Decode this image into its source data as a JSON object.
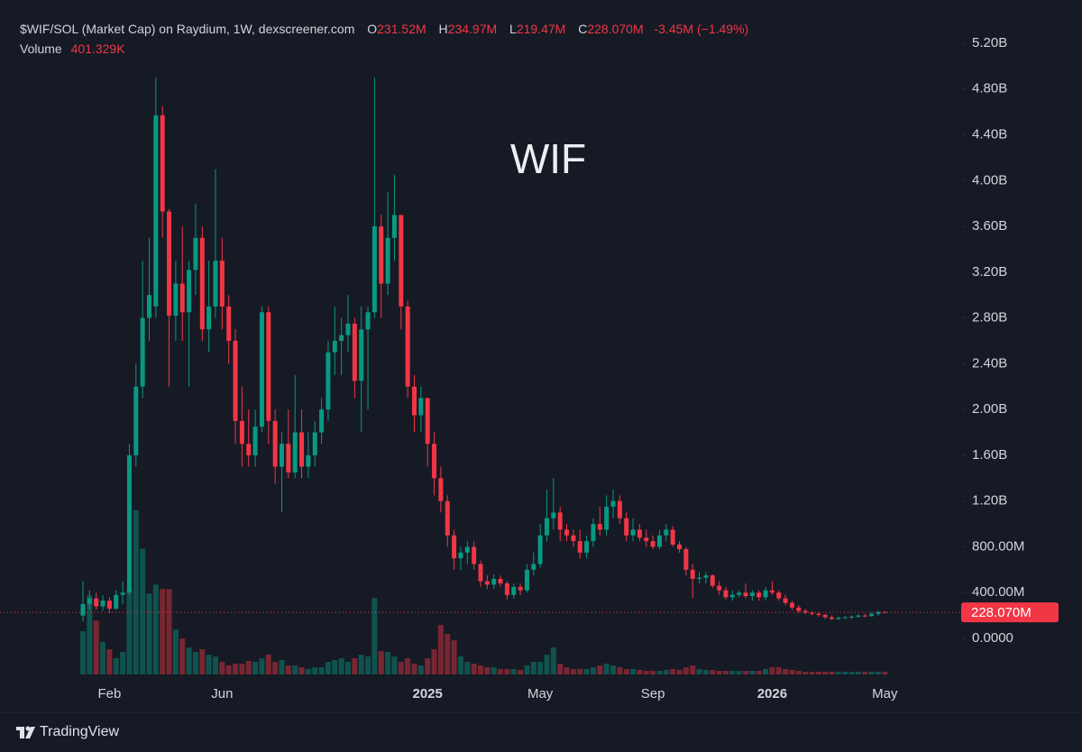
{
  "chart_data": {
    "type": "candlestick",
    "title": "$WIF/SOL (Market Cap) on Raydium, 1W, dexscreener.com",
    "ohlc_legend": [
      {
        "key": "O",
        "value": "231.52M"
      },
      {
        "key": "H",
        "value": "234.97M"
      },
      {
        "key": "L",
        "value": "219.47M"
      },
      {
        "key": "C",
        "value": "228.070M"
      }
    ],
    "change": "-3.45M (−1.49%)",
    "volume_label": "Volume",
    "volume_value_label": "401.329K",
    "watermark": "WIF",
    "last_price": {
      "value": 228070000,
      "label": "228.070M"
    },
    "up_color": "#089981",
    "down_color": "#f23645",
    "grid": false,
    "ylim": [
      -315000000,
      5578000000
    ],
    "yticks": [
      {
        "value": 0,
        "label": "0.0000"
      },
      {
        "value": 400000000,
        "label": "400.00M"
      },
      {
        "value": 800000000,
        "label": "800.00M"
      },
      {
        "value": 1200000000,
        "label": "1.20B"
      },
      {
        "value": 1600000000,
        "label": "1.60B"
      },
      {
        "value": 2000000000,
        "label": "2.00B"
      },
      {
        "value": 2400000000,
        "label": "2.40B"
      },
      {
        "value": 2800000000,
        "label": "2.80B"
      },
      {
        "value": 3200000000,
        "label": "3.20B"
      },
      {
        "value": 3600000000,
        "label": "3.60B"
      },
      {
        "value": 4000000000,
        "label": "4.00B"
      },
      {
        "value": 4400000000,
        "label": "4.40B"
      },
      {
        "value": 4800000000,
        "label": "4.80B"
      },
      {
        "value": 5200000000,
        "label": "5.20B"
      }
    ],
    "y2lim": [
      0,
      30000000
    ],
    "xticks": [
      {
        "value": 4,
        "label": "Feb"
      },
      {
        "value": 21,
        "label": "Jun"
      },
      {
        "value": 52,
        "label": "2025"
      },
      {
        "value": 69,
        "label": "May"
      },
      {
        "value": 86,
        "label": "Sep"
      },
      {
        "value": 104,
        "label": "2026"
      },
      {
        "value": 121,
        "label": "May"
      }
    ],
    "open": [
      200000000.0,
      300000000.0,
      350000000.0,
      280000000.0,
      330000000.0,
      260000000.0,
      380000000.0,
      400000000.0,
      1600000000.0,
      2200000000.0,
      2800000000.0,
      2900000000.0,
      4570000000.0,
      3730000000.0,
      2820000000.0,
      3100000000.0,
      2850000000.0,
      3220000000.0,
      3500000000.0,
      2700000000.0,
      2900000000.0,
      3300000000.0,
      2900000000.0,
      2600000000.0,
      1900000000.0,
      1700000000.0,
      1600000000.0,
      1850000000.0,
      2850000000.0,
      1900000000.0,
      1500000000.0,
      1700000000.0,
      1450000000.0,
      1800000000.0,
      1500000000.0,
      1600000000.0,
      1800000000.0,
      2000000000.0,
      2500000000.0,
      2600000000.0,
      2650000000.0,
      2750000000.0,
      2250000000.0,
      2700000000.0,
      2850000000.0,
      3600000000.0,
      3100000000.0,
      3500000000.0,
      3700000000.0,
      2900000000.0,
      2200000000.0,
      1950000000.0,
      2100000000.0,
      1700000000.0,
      1400000000.0,
      1200000000.0,
      900000000.0,
      700000000.0,
      750000000.0,
      800000000.0,
      650000000.0,
      500000000.0,
      470000000.0,
      520000000.0,
      480000000.0,
      380000000.0,
      450000000.0,
      420000000.0,
      600000000.0,
      650000000.0,
      900000000.0,
      1050000000.0,
      1100000000.0,
      950000000.0,
      900000000.0,
      850000000.0,
      750000000.0,
      850000000.0,
      1000000000.0,
      950000000.0,
      1150000000.0,
      1200000000.0,
      1050000000.0,
      900000000.0,
      950000000.0,
      880000000.0,
      850000000.0,
      800000000.0,
      900000000.0,
      950000000.0,
      820000000.0,
      780000000.0,
      600000000.0,
      520000000.0,
      530000000.0,
      550000000.0,
      460000000.0,
      420000000.0,
      360000000.0,
      380000000.0,
      400000000.0,
      370000000.0,
      400000000.0,
      360000000.0,
      420000000.0,
      400000000.0,
      350000000.0,
      310000000.0,
      270000000.0,
      240000000.0,
      225000000.0,
      215000000.0,
      205000000.0,
      185000000.0,
      170000000.0,
      180000000.0,
      185000000.0,
      190000000.0,
      200000000.0,
      195000000.0,
      215000000.0,
      231520000.0
    ],
    "high": [
      500000000.0,
      420000000.0,
      400000000.0,
      380000000.0,
      360000000.0,
      420000000.0,
      500000000.0,
      1700000000.0,
      2400000000.0,
      3300000000.0,
      3500000000.0,
      4900000000.0,
      4650000000.0,
      3750000000.0,
      3300000000.0,
      3600000000.0,
      3300000000.0,
      3800000000.0,
      3600000000.0,
      3300000000.0,
      4100000000.0,
      3500000000.0,
      3000000000.0,
      2700000000.0,
      2200000000.0,
      2000000000.0,
      2000000000.0,
      2900000000.0,
      2900000000.0,
      2000000000.0,
      1800000000.0,
      2000000000.0,
      2300000000.0,
      2000000000.0,
      1800000000.0,
      1900000000.0,
      2100000000.0,
      2600000000.0,
      2900000000.0,
      2800000000.0,
      3000000000.0,
      2800000000.0,
      2900000000.0,
      2900000000.0,
      4900000000.0,
      3700000000.0,
      3900000000.0,
      4050000000.0,
      3700000000.0,
      2950000000.0,
      2300000000.0,
      2200000000.0,
      2100000000.0,
      1800000000.0,
      1500000000.0,
      1250000000.0,
      950000000.0,
      800000000.0,
      850000000.0,
      850000000.0,
      680000000.0,
      550000000.0,
      560000000.0,
      550000000.0,
      500000000.0,
      480000000.0,
      480000000.0,
      650000000.0,
      750000000.0,
      1000000000.0,
      1300000000.0,
      1400000000.0,
      1150000000.0,
      1000000000.0,
      950000000.0,
      950000000.0,
      900000000.0,
      1050000000.0,
      1150000000.0,
      1250000000.0,
      1300000000.0,
      1250000000.0,
      1100000000.0,
      1050000000.0,
      1000000000.0,
      950000000.0,
      900000000.0,
      950000000.0,
      1000000000.0,
      980000000.0,
      850000000.0,
      800000000.0,
      650000000.0,
      580000000.0,
      580000000.0,
      560000000.0,
      500000000.0,
      450000000.0,
      420000000.0,
      420000000.0,
      480000000.0,
      420000000.0,
      420000000.0,
      450000000.0,
      500000000.0,
      420000000.0,
      380000000.0,
      330000000.0,
      290000000.0,
      260000000.0,
      240000000.0,
      230000000.0,
      215000000.0,
      200000000.0,
      190000000.0,
      195000000.0,
      200000000.0,
      210000000.0,
      215000000.0,
      230000000.0,
      240000000.0,
      234970000.0
    ],
    "low": [
      150000000.0,
      250000000.0,
      250000000.0,
      240000000.0,
      220000000.0,
      250000000.0,
      300000000.0,
      380000000.0,
      1500000000.0,
      2100000000.0,
      2600000000.0,
      2800000000.0,
      3500000000.0,
      2200000000.0,
      2600000000.0,
      2600000000.0,
      2200000000.0,
      3000000000.0,
      2600000000.0,
      2500000000.0,
      2800000000.0,
      2700000000.0,
      2400000000.0,
      1700000000.0,
      1500000000.0,
      1500000000.0,
      1500000000.0,
      1800000000.0,
      1700000000.0,
      1350000000.0,
      1100000000.0,
      1400000000.0,
      1400000000.0,
      1400000000.0,
      1400000000.0,
      1500000000.0,
      1700000000.0,
      1900000000.0,
      2300000000.0,
      2300000000.0,
      2500000000.0,
      2100000000.0,
      1800000000.0,
      2000000000.0,
      2800000000.0,
      2800000000.0,
      3000000000.0,
      3300000000.0,
      2700000000.0,
      2100000000.0,
      1800000000.0,
      1800000000.0,
      1500000000.0,
      1250000000.0,
      1100000000.0,
      800000000.0,
      600000000.0,
      600000000.0,
      650000000.0,
      600000000.0,
      450000000.0,
      430000000.0,
      430000000.0,
      450000000.0,
      340000000.0,
      350000000.0,
      380000000.0,
      400000000.0,
      550000000.0,
      620000000.0,
      850000000.0,
      950000000.0,
      850000000.0,
      850000000.0,
      800000000.0,
      700000000.0,
      700000000.0,
      800000000.0,
      900000000.0,
      900000000.0,
      1050000000.0,
      1000000000.0,
      850000000.0,
      850000000.0,
      850000000.0,
      800000000.0,
      780000000.0,
      780000000.0,
      850000000.0,
      800000000.0,
      750000000.0,
      550000000.0,
      350000000.0,
      480000000.0,
      480000000.0,
      440000000.0,
      380000000.0,
      340000000.0,
      330000000.0,
      360000000.0,
      350000000.0,
      330000000.0,
      330000000.0,
      330000000.0,
      380000000.0,
      330000000.0,
      290000000.0,
      250000000.0,
      220000000.0,
      210000000.0,
      200000000.0,
      190000000.0,
      170000000.0,
      160000000.0,
      160000000.0,
      170000000.0,
      170000000.0,
      180000000.0,
      185000000.0,
      190000000.0,
      200000000.0,
      219470000.0
    ],
    "close": [
      300000000.0,
      350000000.0,
      280000000.0,
      330000000.0,
      260000000.0,
      380000000.0,
      400000000.0,
      1600000000.0,
      2200000000.0,
      2800000000.0,
      3000000000.0,
      4570000000.0,
      3730000000.0,
      2820000000.0,
      3100000000.0,
      2850000000.0,
      3220000000.0,
      3500000000.0,
      2700000000.0,
      2900000000.0,
      3300000000.0,
      2900000000.0,
      2600000000.0,
      1900000000.0,
      1700000000.0,
      1600000000.0,
      1850000000.0,
      2850000000.0,
      1900000000.0,
      1500000000.0,
      1700000000.0,
      1450000000.0,
      1800000000.0,
      1500000000.0,
      1600000000.0,
      1800000000.0,
      2000000000.0,
      2500000000.0,
      2600000000.0,
      2650000000.0,
      2750000000.0,
      2250000000.0,
      2700000000.0,
      2850000000.0,
      3600000000.0,
      3100000000.0,
      3500000000.0,
      3700000000.0,
      2900000000.0,
      2200000000.0,
      1950000000.0,
      2100000000.0,
      1700000000.0,
      1400000000.0,
      1200000000.0,
      900000000.0,
      700000000.0,
      750000000.0,
      800000000.0,
      650000000.0,
      500000000.0,
      470000000.0,
      520000000.0,
      480000000.0,
      380000000.0,
      450000000.0,
      420000000.0,
      600000000.0,
      650000000.0,
      900000000.0,
      1050000000.0,
      1100000000.0,
      950000000.0,
      900000000.0,
      850000000.0,
      750000000.0,
      850000000.0,
      1000000000.0,
      950000000.0,
      1150000000.0,
      1200000000.0,
      1050000000.0,
      900000000.0,
      950000000.0,
      880000000.0,
      850000000.0,
      800000000.0,
      900000000.0,
      950000000.0,
      820000000.0,
      780000000.0,
      600000000.0,
      520000000.0,
      530000000.0,
      550000000.0,
      460000000.0,
      420000000.0,
      360000000.0,
      380000000.0,
      400000000.0,
      370000000.0,
      400000000.0,
      360000000.0,
      420000000.0,
      400000000.0,
      350000000.0,
      310000000.0,
      270000000.0,
      240000000.0,
      225000000.0,
      215000000.0,
      205000000.0,
      185000000.0,
      170000000.0,
      180000000.0,
      185000000.0,
      190000000.0,
      200000000.0,
      195000000.0,
      215000000.0,
      231520000.0,
      228070000.0
    ],
    "volume": [
      6240000.0,
      11440000.0,
      7800000.0,
      4680000.0,
      3640000.0,
      2340000.0,
      3250000.0,
      12350000.0,
      23790000.0,
      18200000.0,
      11700000.0,
      13000000.0,
      12350000.0,
      12350000.0,
      6500000.0,
      5200000.0,
      3900000.0,
      3250000.0,
      3640000.0,
      2860000.0,
      2600000.0,
      1820000.0,
      1300000.0,
      1560000.0,
      1560000.0,
      1950000.0,
      1820000.0,
      2340000.0,
      2860000.0,
      1820000.0,
      2080000.0,
      1300000.0,
      1300000.0,
      1040000.0,
      780000.0,
      1040000.0,
      1040000.0,
      1820000.0,
      2080000.0,
      2340000.0,
      1820000.0,
      2340000.0,
      2860000.0,
      2600000.0,
      11050000.0,
      3380000.0,
      3250000.0,
      2600000.0,
      1820000.0,
      2340000.0,
      1560000.0,
      1300000.0,
      2340000.0,
      3640000.0,
      7150000.0,
      5850000.0,
      4940000.0,
      2600000.0,
      1820000.0,
      1560000.0,
      1300000.0,
      1040000.0,
      1040000.0,
      780000.0,
      780000.0,
      780000.0,
      650000.0,
      1300000.0,
      1820000.0,
      1820000.0,
      2860000.0,
      3900000.0,
      1560000.0,
      1040000.0,
      780000.0,
      780000.0,
      780000.0,
      1040000.0,
      1300000.0,
      1560000.0,
      1300000.0,
      1040000.0,
      780000.0,
      780000.0,
      650000.0,
      520000.0,
      520000.0,
      520000.0,
      650000.0,
      780000.0,
      650000.0,
      1040000.0,
      1300000.0,
      780000.0,
      650000.0,
      650000.0,
      520000.0,
      520000.0,
      520000.0,
      520000.0,
      520000.0,
      520000.0,
      520000.0,
      780000.0,
      1040000.0,
      1040000.0,
      780000.0,
      650000.0,
      520000.0,
      390000.0,
      390000.0,
      390000.0,
      390000.0,
      390000.0,
      390000.0,
      390000.0,
      390000.0,
      390000.0,
      390000.0,
      390000.0,
      390000.0,
      401329
    ]
  },
  "branding": "TradingView"
}
